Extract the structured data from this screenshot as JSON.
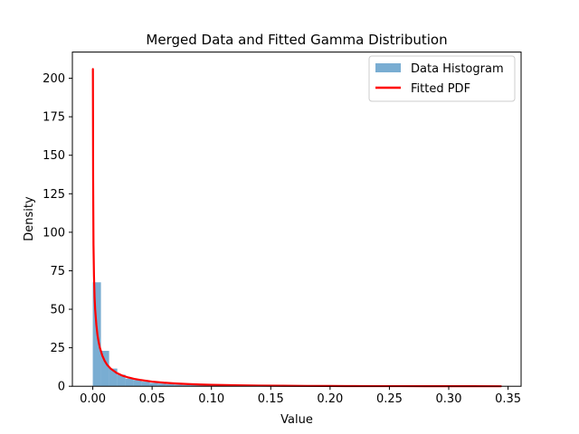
{
  "chart_data": {
    "type": "bar",
    "title": "Merged Data and Fitted Gamma Distribution",
    "xlabel": "Value",
    "ylabel": "Density",
    "xlim": [
      -0.0172,
      0.361
    ],
    "ylim": [
      0,
      217
    ],
    "xticks": [
      0.0,
      0.05,
      0.1,
      0.15,
      0.2,
      0.25,
      0.3,
      0.35
    ],
    "xtick_labels": [
      "0.00",
      "0.05",
      "0.10",
      "0.15",
      "0.20",
      "0.25",
      "0.30",
      "0.35"
    ],
    "yticks": [
      0,
      25,
      50,
      75,
      100,
      125,
      150,
      175,
      200
    ],
    "ytick_labels": [
      "0",
      "25",
      "50",
      "75",
      "100",
      "125",
      "150",
      "175",
      "200"
    ],
    "grid": false,
    "legend_position": "top-right",
    "series": [
      {
        "name": "Data Histogram",
        "kind": "histogram",
        "color": "#1f77b4",
        "opacity": 0.6,
        "bin_width": 0.00688,
        "bin_starts": [
          0.0,
          0.00688,
          0.01376,
          0.02064,
          0.02752,
          0.0344,
          0.04128,
          0.04816,
          0.05504,
          0.06192,
          0.0688,
          0.07568,
          0.08256,
          0.08944,
          0.09632,
          0.1032,
          0.11008,
          0.11696,
          0.12384,
          0.13072,
          0.1376,
          0.14448,
          0.15136,
          0.15824,
          0.16512,
          0.172,
          0.17888,
          0.18576,
          0.19264,
          0.19952,
          0.2064,
          0.21328,
          0.22016,
          0.22704,
          0.23392,
          0.2408,
          0.24768,
          0.25456,
          0.26144,
          0.26832,
          0.2752,
          0.28208,
          0.28896,
          0.29584,
          0.30272,
          0.3096,
          0.31648,
          0.32336,
          0.33024,
          0.33712
        ],
        "values": [
          67.5,
          23,
          11.5,
          7.5,
          5,
          4,
          3,
          2.2,
          1.8,
          1.4,
          1.1,
          0.9,
          0.8,
          0.7,
          0.6,
          0.5,
          0.45,
          0.4,
          0.35,
          0.3,
          0.3,
          0.25,
          0.25,
          0.2,
          0.2,
          0.2,
          0.15,
          0.15,
          0.15,
          0.1,
          0.1,
          0.1,
          0.1,
          0.1,
          0.08,
          0.08,
          0.08,
          0.06,
          0.06,
          0.06,
          0.05,
          0.05,
          0.05,
          0.04,
          0.04,
          0.04,
          0.03,
          0.03,
          0.03,
          0.03
        ]
      },
      {
        "name": "Fitted PDF",
        "kind": "line",
        "color": "#ff0000",
        "x": [
          0.0001,
          0.0003,
          0.0006,
          0.001,
          0.0015,
          0.002,
          0.003,
          0.004,
          0.005,
          0.006,
          0.008,
          0.01,
          0.012,
          0.015,
          0.02,
          0.025,
          0.03,
          0.035,
          0.04,
          0.05,
          0.06,
          0.07,
          0.08,
          0.09,
          0.1,
          0.12,
          0.14,
          0.16,
          0.18,
          0.2,
          0.22,
          0.24,
          0.26,
          0.28,
          0.3,
          0.32,
          0.344
        ],
        "y": [
          206,
          135,
          92,
          72,
          58,
          50,
          40,
          33,
          28.5,
          25,
          20,
          16.5,
          14,
          11.5,
          8.7,
          6.9,
          5.7,
          4.8,
          4.1,
          3.0,
          2.3,
          1.8,
          1.45,
          1.15,
          0.95,
          0.65,
          0.45,
          0.32,
          0.23,
          0.17,
          0.12,
          0.09,
          0.07,
          0.05,
          0.04,
          0.03,
          0.02
        ]
      }
    ]
  }
}
